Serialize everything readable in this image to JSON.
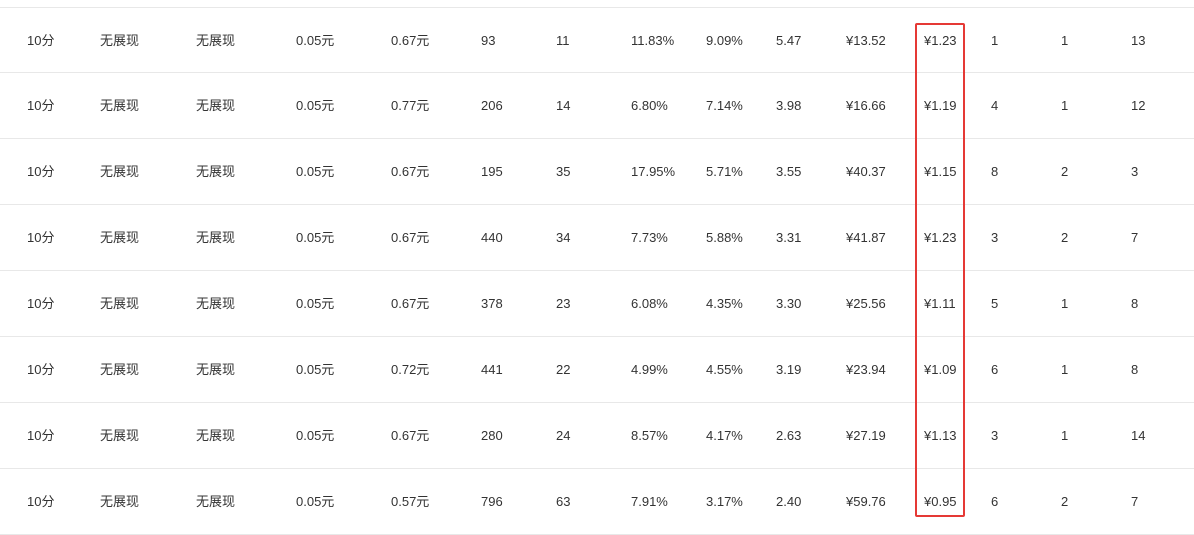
{
  "table": {
    "rows": [
      [
        "10分",
        "无展现",
        "无展现",
        "0.05元",
        "0.67元",
        "93",
        "11",
        "11.83%",
        "9.09%",
        "5.47",
        "¥13.52",
        "¥1.23",
        "1",
        "1",
        "13"
      ],
      [
        "10分",
        "无展现",
        "无展现",
        "0.05元",
        "0.77元",
        "206",
        "14",
        "6.80%",
        "7.14%",
        "3.98",
        "¥16.66",
        "¥1.19",
        "4",
        "1",
        "12"
      ],
      [
        "10分",
        "无展现",
        "无展现",
        "0.05元",
        "0.67元",
        "195",
        "35",
        "17.95%",
        "5.71%",
        "3.55",
        "¥40.37",
        "¥1.15",
        "8",
        "2",
        "3"
      ],
      [
        "10分",
        "无展现",
        "无展现",
        "0.05元",
        "0.67元",
        "440",
        "34",
        "7.73%",
        "5.88%",
        "3.31",
        "¥41.87",
        "¥1.23",
        "3",
        "2",
        "7"
      ],
      [
        "10分",
        "无展现",
        "无展现",
        "0.05元",
        "0.67元",
        "378",
        "23",
        "6.08%",
        "4.35%",
        "3.30",
        "¥25.56",
        "¥1.11",
        "5",
        "1",
        "8"
      ],
      [
        "10分",
        "无展现",
        "无展现",
        "0.05元",
        "0.72元",
        "441",
        "22",
        "4.99%",
        "4.55%",
        "3.19",
        "¥23.94",
        "¥1.09",
        "6",
        "1",
        "8"
      ],
      [
        "10分",
        "无展现",
        "无展现",
        "0.05元",
        "0.67元",
        "280",
        "24",
        "8.57%",
        "4.17%",
        "2.63",
        "¥27.19",
        "¥1.13",
        "3",
        "1",
        "14"
      ],
      [
        "10分",
        "无展现",
        "无展现",
        "0.05元",
        "0.57元",
        "796",
        "63",
        "7.91%",
        "3.17%",
        "2.40",
        "¥59.76",
        "¥0.95",
        "6",
        "2",
        "7"
      ]
    ],
    "highlighted_column_index": 11
  },
  "colors": {
    "text": "#333333",
    "row_border": "#e8e8e8",
    "highlight": "#e53935"
  }
}
